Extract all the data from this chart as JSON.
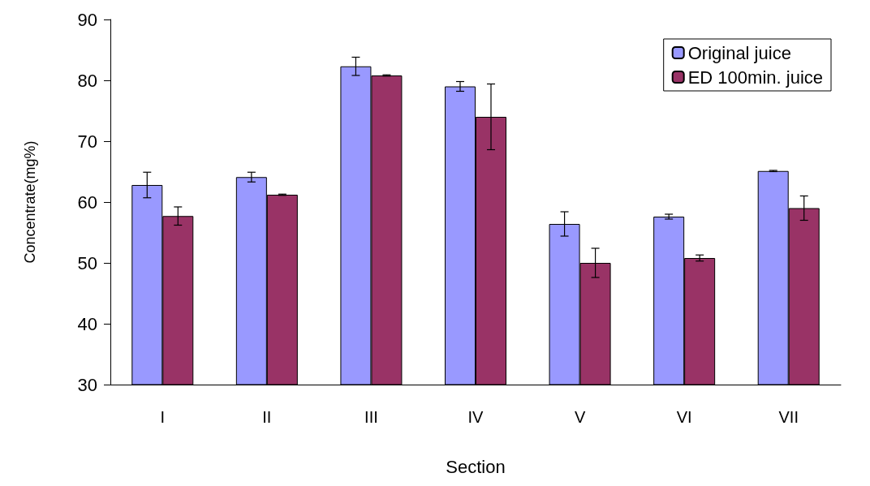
{
  "chart_data": {
    "type": "bar",
    "xlabel": "Section",
    "ylabel": "Concentrate(mg%)",
    "categories": [
      "I",
      "II",
      "III",
      "IV",
      "V",
      "VI",
      "VII"
    ],
    "series": [
      {
        "name": "Original juice",
        "color": "#9999ff",
        "values": [
          62.8,
          64.1,
          82.3,
          79.0,
          56.4,
          57.6,
          65.1
        ],
        "errors": [
          2.1,
          0.8,
          1.5,
          0.8,
          2.0,
          0.4,
          0.1
        ]
      },
      {
        "name": "ED 100min. juice",
        "color": "#993366",
        "values": [
          57.7,
          61.2,
          80.8,
          74.0,
          50.0,
          50.8,
          59.0
        ],
        "errors": [
          1.5,
          0.1,
          0.1,
          5.4,
          2.4,
          0.5,
          2.0
        ]
      }
    ],
    "ylim": [
      30,
      90
    ],
    "yticks": [
      30,
      40,
      50,
      60,
      70,
      80,
      90
    ],
    "grid": false,
    "legend": "top right"
  }
}
